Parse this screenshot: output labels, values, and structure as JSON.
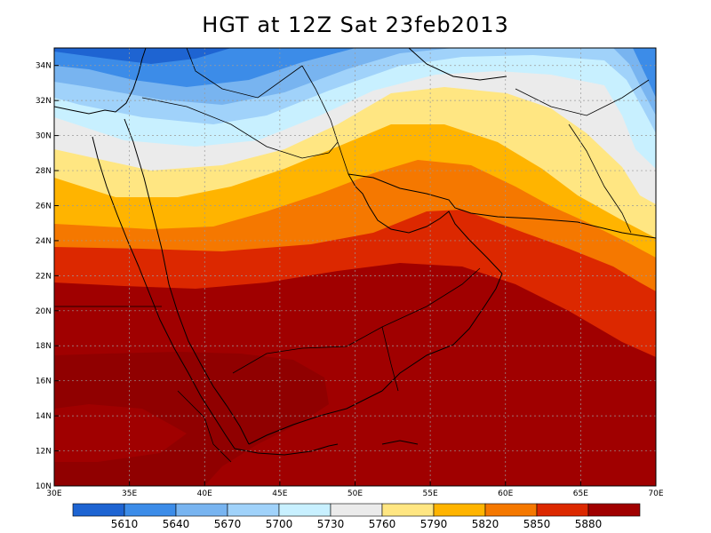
{
  "title": "HGT at 12Z Sat 23feb2013",
  "axes": {
    "lat_labels": [
      "10N",
      "12N",
      "14N",
      "16N",
      "18N",
      "20N",
      "22N",
      "24N",
      "26N",
      "28N",
      "30N",
      "32N",
      "34N"
    ],
    "lon_labels": [
      "30E",
      "35E",
      "40E",
      "45E",
      "50E",
      "55E",
      "60E",
      "65E",
      "70E"
    ],
    "lat_range": [
      10,
      35
    ],
    "lon_range": [
      30,
      70
    ],
    "grid": true
  },
  "colorbar": {
    "levels": [
      "5610",
      "5640",
      "5670",
      "5700",
      "5730",
      "5760",
      "5790",
      "5820",
      "5850",
      "5880"
    ],
    "colors": [
      "#1e64d2",
      "#3c8ce8",
      "#78b4f0",
      "#a0d2fa",
      "#c8f0ff",
      "#ebebeb",
      "#ffe682",
      "#ffb400",
      "#f57800",
      "#dc2800",
      "#a00000"
    ]
  }
}
